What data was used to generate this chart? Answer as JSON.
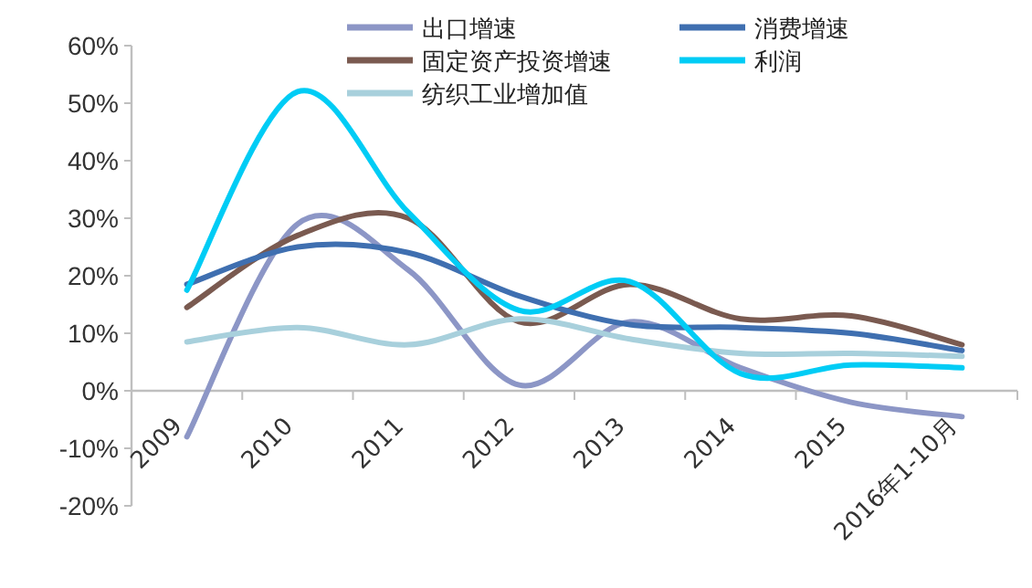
{
  "chart_data": {
    "type": "line",
    "categories": [
      "2009",
      "2010",
      "2011",
      "2012",
      "2013",
      "2014",
      "2015",
      "2016年1-10月"
    ],
    "series": [
      {
        "name": "出口增速",
        "color": "#8c96c6",
        "values": [
          -8,
          29,
          21,
          1,
          12,
          4,
          -2,
          -4.5
        ]
      },
      {
        "name": "固定资产投资增速",
        "color": "#7a5a50",
        "values": [
          14.5,
          27,
          30,
          12,
          18.5,
          12.5,
          13,
          8
        ]
      },
      {
        "name": "纺织工业增加值",
        "color": "#a8d0dc",
        "values": [
          8.5,
          11,
          8,
          12.5,
          9,
          6.5,
          6.5,
          6
        ]
      },
      {
        "name": "消费增速",
        "color": "#3f6fb0",
        "values": [
          18.5,
          25,
          24,
          16.5,
          11.5,
          11,
          10,
          7
        ]
      },
      {
        "name": "利润",
        "color": "#00ccf5",
        "values": [
          17.5,
          52,
          31,
          14,
          19,
          3,
          4.5,
          4
        ]
      }
    ],
    "ylim": [
      -20,
      60
    ],
    "yticks": [
      {
        "value": -20,
        "label": "-20%"
      },
      {
        "value": -10,
        "label": "-10%"
      },
      {
        "value": 0,
        "label": "0%"
      },
      {
        "value": 10,
        "label": "10%"
      },
      {
        "value": 20,
        "label": "20%"
      },
      {
        "value": 30,
        "label": "30%"
      },
      {
        "value": 40,
        "label": "40%"
      },
      {
        "value": 50,
        "label": "50%"
      },
      {
        "value": 60,
        "label": "60%"
      }
    ],
    "grid": false,
    "legend": "top",
    "marker": "none",
    "line_style": "solid"
  }
}
